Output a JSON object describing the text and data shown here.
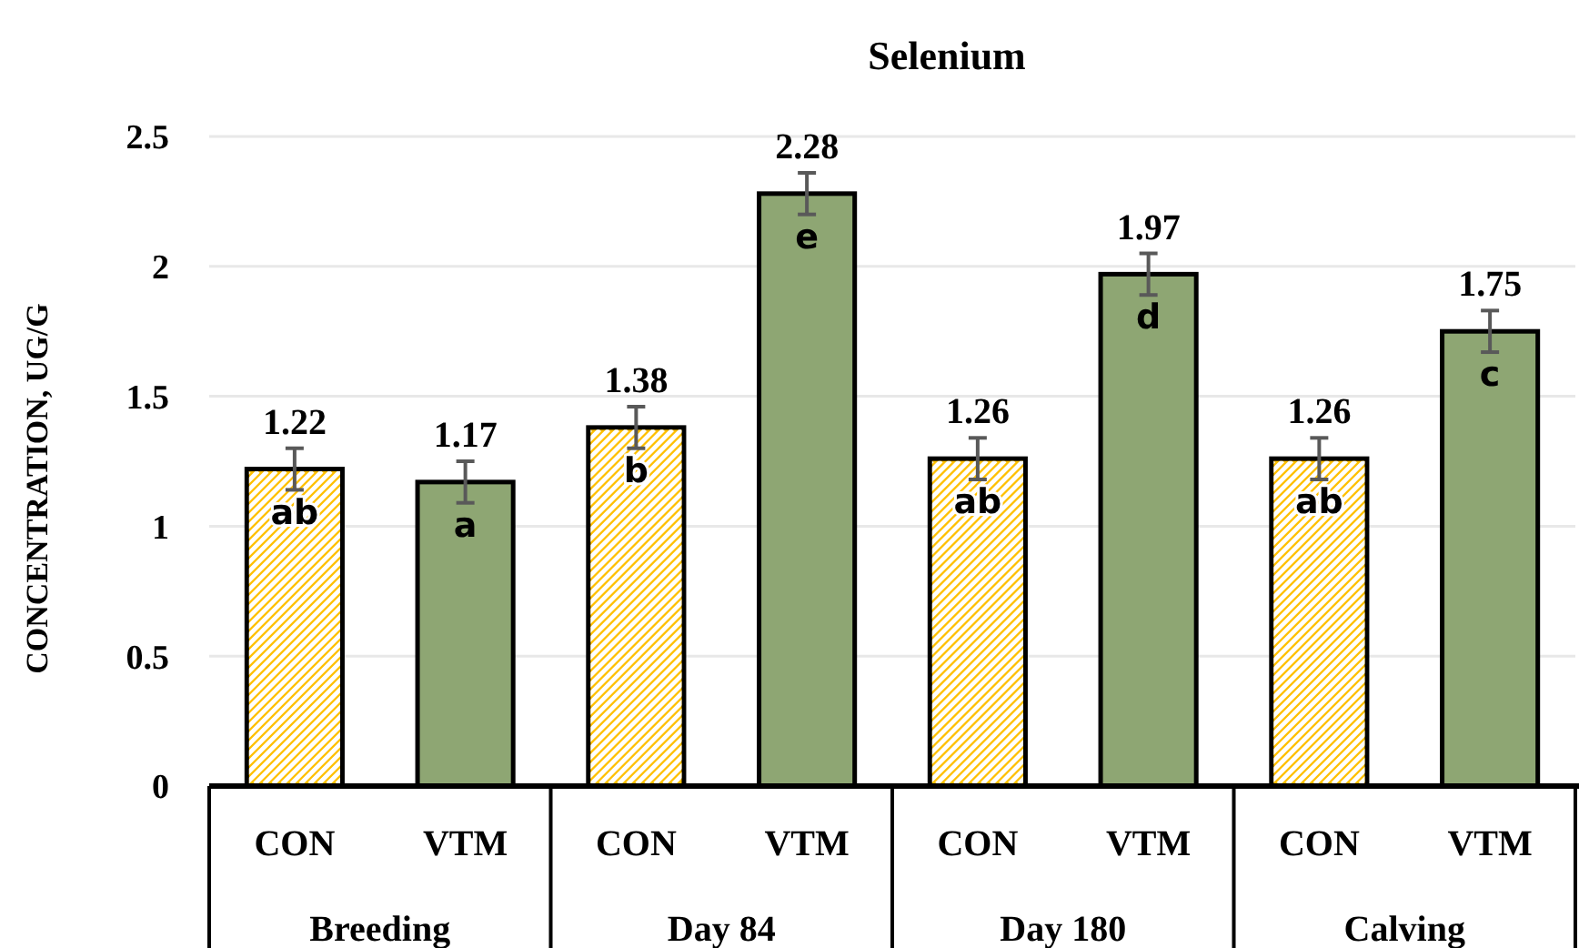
{
  "chart_data": {
    "type": "bar",
    "title": "Selenium",
    "ylabel": "CONCENTRATION, UG/G",
    "categories": [
      "CON",
      "VTM",
      "CON",
      "VTM",
      "CON",
      "VTM",
      "CON",
      "VTM"
    ],
    "values": [
      1.22,
      1.17,
      1.38,
      2.28,
      1.26,
      1.97,
      1.26,
      1.75
    ],
    "colors": [
      "#ffc000",
      "#8ea673",
      "#ffc000",
      "#8ea673",
      "#ffc000",
      "#8ea673",
      "#ffc000",
      "#8ea673"
    ],
    "errors": [
      0.08,
      0.08,
      0.08,
      0.08,
      0.08,
      0.08,
      0.08,
      0.08
    ],
    "data_labels": true,
    "annotations": [
      {
        "text": "ab",
        "y": 1.22
      },
      {
        "text": "a",
        "y": 1.17
      },
      {
        "text": "b",
        "y": 1.38
      },
      {
        "text": "e",
        "y": 2.28
      },
      {
        "text": "ab",
        "y": 1.26
      },
      {
        "text": "d",
        "y": 1.97
      },
      {
        "text": "ab",
        "y": 1.26
      },
      {
        "text": "c",
        "y": 1.75
      },
      "Breeding",
      "Day 84",
      "Day 180",
      "Calving"
    ],
    "ylim": [
      0,
      2.5
    ],
    "yticks": [
      0,
      0.5,
      1,
      1.5,
      2,
      2.5
    ],
    "grid": "y"
  }
}
